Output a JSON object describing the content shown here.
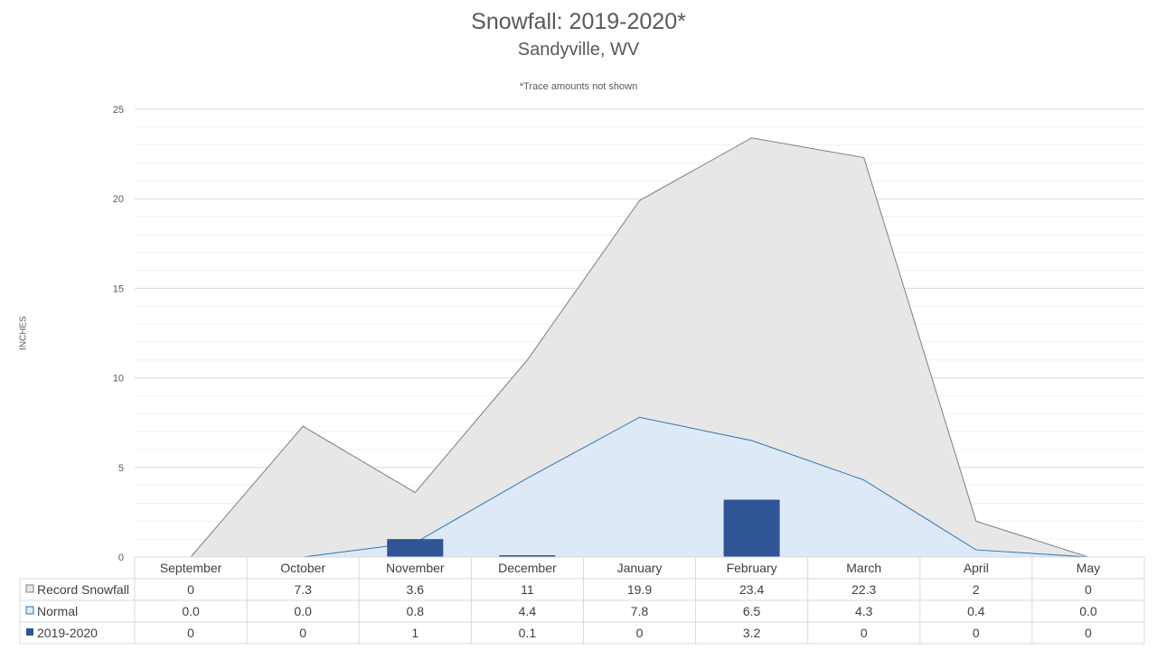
{
  "chart_data": {
    "type": "area",
    "title": "Snowfall: 2019-2020*",
    "subtitle": "Sandyville, WV",
    "note": "*Trace amounts not shown",
    "ylabel": "INCHES",
    "xlabel": "",
    "ylim": [
      0,
      25
    ],
    "yticks": [
      0,
      5,
      10,
      15,
      20,
      25
    ],
    "grid": true,
    "legend": "data-table",
    "categories": [
      "September",
      "October",
      "November",
      "December",
      "January",
      "February",
      "March",
      "April",
      "May"
    ],
    "series": [
      {
        "name": "Record Snowfall",
        "kind": "area",
        "color": "#e7e7e7",
        "line_color": "#7f7f7f",
        "values": [
          0,
          7.3,
          3.6,
          11,
          19.9,
          23.4,
          22.3,
          2,
          0
        ],
        "labels": [
          "0",
          "7.3",
          "3.6",
          "11",
          "19.9",
          "23.4",
          "22.3",
          "2",
          "0"
        ]
      },
      {
        "name": "Normal",
        "kind": "area",
        "color": "#dde9f6",
        "line_color": "#2e75b6",
        "values": [
          0.0,
          0.0,
          0.8,
          4.4,
          7.8,
          6.5,
          4.3,
          0.4,
          0.0
        ],
        "labels": [
          "0.0",
          "0.0",
          "0.8",
          "4.4",
          "7.8",
          "6.5",
          "4.3",
          "0.4",
          "0.0"
        ]
      },
      {
        "name": "2019-2020",
        "kind": "bar",
        "color": "#2f5597",
        "values": [
          0,
          0,
          1,
          0.1,
          0,
          3.2,
          0,
          0,
          0
        ],
        "labels": [
          "0",
          "0",
          "1",
          "0.1",
          "0",
          "3.2",
          "0",
          "0",
          "0"
        ]
      }
    ]
  }
}
